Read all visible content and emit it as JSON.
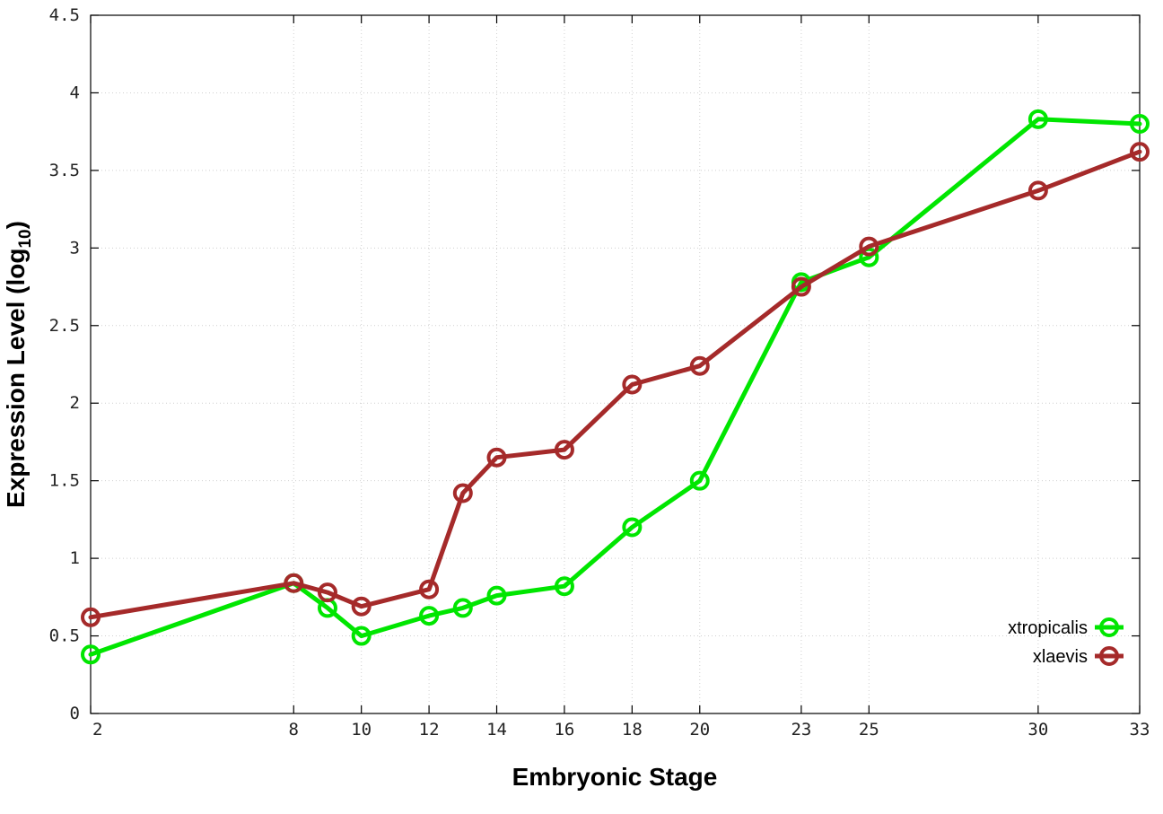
{
  "chart_data": {
    "type": "line",
    "xlabel": "Embryonic Stage",
    "ylabel_main": "Expression Level (log",
    "ylabel_sub": "10",
    "ylabel_close": ")",
    "xlim": [
      2,
      33
    ],
    "ylim": [
      0,
      4.5
    ],
    "xticks": [
      2,
      8,
      10,
      12,
      14,
      16,
      18,
      20,
      23,
      25,
      30,
      33
    ],
    "xtick_labels": [
      "2",
      "8",
      "10",
      "12",
      "14",
      "16",
      "18",
      "20",
      "23",
      "25",
      "30",
      "33"
    ],
    "yticks": [
      0,
      0.5,
      1,
      1.5,
      2,
      2.5,
      3,
      3.5,
      4,
      4.5
    ],
    "ytick_labels": [
      "0",
      "0.5",
      "1",
      "1.5",
      "2",
      "2.5",
      "3",
      "3.5",
      "4",
      "4.5"
    ],
    "grid": true,
    "legend_position": "bottom-right",
    "series": [
      {
        "name": "xtropicalis",
        "color": "#00e600",
        "x": [
          2,
          8,
          9,
          10,
          12,
          13,
          14,
          16,
          18,
          20,
          23,
          25,
          30,
          33
        ],
        "y": [
          0.38,
          0.84,
          0.68,
          0.5,
          0.63,
          0.68,
          0.76,
          0.82,
          1.2,
          1.5,
          2.78,
          2.94,
          3.83,
          3.8
        ]
      },
      {
        "name": "xlaevis",
        "color": "#a52a2a",
        "x": [
          2,
          8,
          9,
          10,
          12,
          13,
          14,
          16,
          18,
          20,
          23,
          25,
          30,
          33
        ],
        "y": [
          0.62,
          0.84,
          0.78,
          0.69,
          0.8,
          1.42,
          1.65,
          1.7,
          2.12,
          2.24,
          2.75,
          3.01,
          3.37,
          3.62
        ]
      }
    ]
  }
}
